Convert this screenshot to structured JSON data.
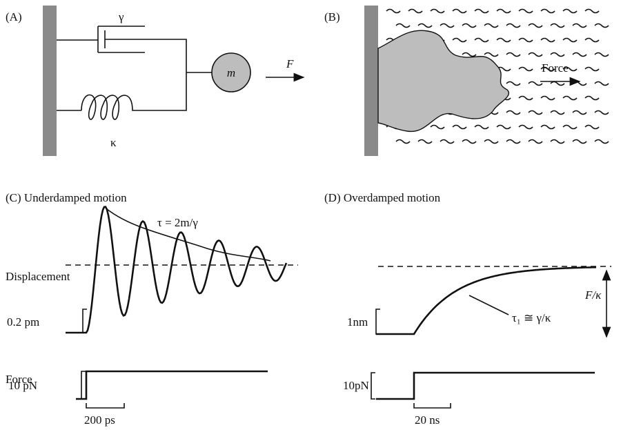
{
  "panels": {
    "a": {
      "label": "(A)",
      "damping": "γ",
      "mass": "m",
      "force": "F",
      "spring": "κ"
    },
    "b": {
      "label": "(B)",
      "force": "Force"
    },
    "c": {
      "label": "(C) Underdamped motion",
      "tau": "τ = 2m/γ",
      "displacement": "Displacement",
      "displacement_scale": "0.2 pm",
      "force": "Force",
      "force_scale": "10 pN",
      "time_scale": "200 ps"
    },
    "d": {
      "label": "(D) Overdamped motion",
      "displacement_scale": "1nm",
      "tau": "τ₁ ≅ γ/κ",
      "offset": "F/κ",
      "force_scale": "10pN",
      "time_scale": "20 ns"
    }
  }
}
